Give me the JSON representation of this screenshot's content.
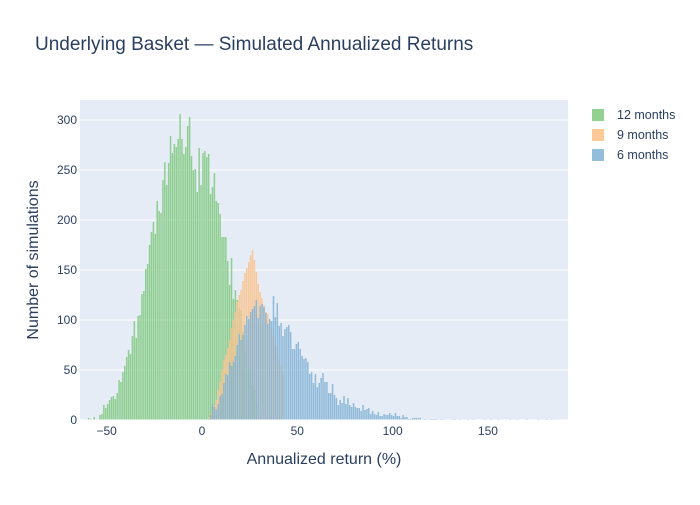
{
  "chart_data": {
    "type": "bar",
    "barmode": "overlay",
    "title": "Underlying Basket — Simulated Annualized Returns",
    "xlabel": "Annualized return (%)",
    "ylabel": "Number of simulations",
    "xlim": [
      -64,
      192
    ],
    "ylim": [
      0,
      320
    ],
    "xticks": [
      -50,
      0,
      50,
      100,
      150
    ],
    "yticks": [
      0,
      50,
      100,
      150,
      200,
      250,
      300
    ],
    "grid": true,
    "legend_position": "top-right",
    "bin_width_pct": 1,
    "bin_offset": 0.5,
    "series": [
      {
        "name": "12 months",
        "color": "#7fc97f",
        "x_start": -63,
        "values": [
          0,
          0,
          0,
          2,
          1,
          0,
          3,
          0,
          0,
          5,
          6,
          15,
          12,
          16,
          20,
          23,
          24,
          21,
          27,
          40,
          38,
          48,
          54,
          63,
          70,
          66,
          84,
          99,
          82,
          104,
          105,
          126,
          129,
          151,
          156,
          175,
          188,
          198,
          186,
          219,
          209,
          207,
          240,
          258,
          235,
          257,
          284,
          267,
          276,
          273,
          281,
          306,
          281,
          266,
          273,
          294,
          303,
          264,
          250,
          251,
          228,
          272,
          235,
          267,
          269,
          263,
          266,
          226,
          233,
          247,
          219,
          217,
          206,
          183,
          183,
          183,
          159,
          135,
          162,
          121,
          130,
          120,
          112,
          110,
          88,
          68,
          84,
          52,
          50,
          35,
          30,
          16,
          0,
          0,
          0,
          0
        ]
      },
      {
        "name": "9 months",
        "color": "#fdc086",
        "x_start": 2,
        "values": [
          0,
          3,
          6,
          10,
          15,
          20,
          30,
          38,
          50,
          60,
          65,
          72,
          80,
          92,
          100,
          108,
          118,
          125,
          130,
          139,
          147,
          152,
          158,
          165,
          170,
          160,
          148,
          136,
          128,
          122,
          115,
          108,
          106,
          100,
          92,
          84,
          74,
          66,
          60,
          55,
          48
        ]
      },
      {
        "name": "6 months",
        "color": "#80b1d3",
        "x_start": 2,
        "values": [
          0,
          1,
          5,
          15,
          13,
          10,
          16,
          24,
          26,
          37,
          46,
          45,
          58,
          54,
          58,
          64,
          75,
          86,
          80,
          85,
          95,
          104,
          101,
          108,
          111,
          114,
          120,
          102,
          114,
          116,
          113,
          107,
          96,
          101,
          99,
          124,
          103,
          117,
          94,
          97,
          84,
          91,
          93,
          95,
          88,
          71,
          71,
          76,
          78,
          71,
          64,
          61,
          62,
          58,
          46,
          48,
          37,
          46,
          33,
          37,
          42,
          47,
          38,
          38,
          27,
          27,
          36,
          25,
          22,
          15,
          20,
          17,
          24,
          16,
          22,
          15,
          13,
          17,
          13,
          12,
          12,
          9,
          15,
          10,
          11,
          12,
          6,
          9,
          6,
          5,
          8,
          4,
          4,
          6,
          5,
          5,
          7,
          5,
          4,
          7,
          4,
          4,
          2,
          5,
          3,
          3,
          1,
          1,
          2,
          2,
          2,
          2,
          2,
          0,
          1,
          1,
          0,
          1,
          1,
          1,
          1,
          1,
          0,
          1,
          1,
          0,
          0,
          0,
          0,
          1,
          1,
          0,
          0,
          1,
          0,
          0,
          0,
          1,
          0,
          0,
          1,
          0,
          0,
          0,
          0,
          0,
          1,
          0,
          0,
          1,
          0,
          0,
          0,
          1,
          0,
          0,
          0,
          0,
          0,
          1,
          0,
          0,
          0,
          1,
          0,
          0,
          0,
          0,
          1,
          0,
          0,
          0,
          0,
          0,
          1,
          0,
          0,
          0,
          1,
          0,
          0,
          1,
          0,
          0
        ]
      }
    ]
  }
}
